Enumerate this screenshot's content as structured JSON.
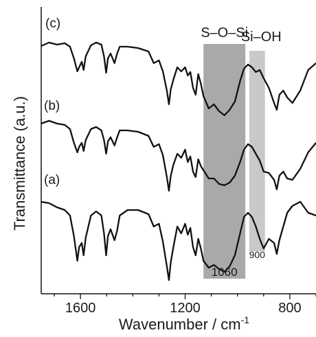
{
  "chart_data": {
    "type": "line",
    "xlabel": "Wavenumber / cm",
    "xlabel_sup": "-1",
    "ylabel": "Transmittance (a.u.)",
    "x_reversed": true,
    "xlim": [
      1750,
      700
    ],
    "xticks": [
      1600,
      1200,
      800
    ],
    "xtick_labels": [
      "1600",
      "1200",
      "800"
    ],
    "grid": false,
    "bands": [
      {
        "label": "S–O–Si",
        "from": 1130,
        "to": 970,
        "color": "#a9a9a9",
        "value_label": "1060"
      },
      {
        "label": "Si–OH",
        "from": 955,
        "to": 895,
        "color": "#c9c9c9",
        "value_label": "900"
      }
    ],
    "series": [
      {
        "name": "(c)",
        "x": [
          1750,
          1720,
          1690,
          1660,
          1640,
          1625,
          1612,
          1605,
          1595,
          1588,
          1580,
          1560,
          1540,
          1520,
          1510,
          1502,
          1495,
          1485,
          1470,
          1460,
          1450,
          1420,
          1380,
          1340,
          1320,
          1300,
          1285,
          1270,
          1262,
          1255,
          1245,
          1230,
          1215,
          1200,
          1190,
          1180,
          1170,
          1160,
          1150,
          1140,
          1130,
          1110,
          1090,
          1070,
          1050,
          1030,
          1010,
          990,
          975,
          960,
          945,
          930,
          915,
          900,
          880,
          860,
          850,
          840,
          825,
          810,
          790,
          760,
          730,
          700
        ],
        "y": [
          57,
          52,
          55,
          53,
          58,
          75,
          94,
          88,
          80,
          92,
          72,
          56,
          52,
          55,
          72,
          96,
          75,
          68,
          82,
          68,
          58,
          58,
          60,
          65,
          82,
          78,
          94,
          122,
          142,
          120,
          106,
          88,
          94,
          88,
          100,
          95,
          118,
          128,
          98,
          112,
          130,
          148,
          142,
          152,
          158,
          150,
          138,
          108,
          90,
          84,
          88,
          95,
          92,
          104,
          118,
          140,
          150,
          128,
          122,
          132,
          140,
          122,
          92,
          82
        ]
      },
      {
        "name": "(b)",
        "x": [
          1750,
          1720,
          1690,
          1660,
          1640,
          1625,
          1612,
          1605,
          1595,
          1588,
          1580,
          1560,
          1540,
          1520,
          1510,
          1502,
          1495,
          1485,
          1470,
          1460,
          1450,
          1420,
          1380,
          1340,
          1320,
          1300,
          1285,
          1270,
          1262,
          1255,
          1245,
          1230,
          1215,
          1200,
          1190,
          1180,
          1170,
          1160,
          1150,
          1140,
          1130,
          1110,
          1090,
          1070,
          1050,
          1030,
          1010,
          990,
          975,
          960,
          945,
          930,
          915,
          900,
          880,
          860,
          850,
          840,
          825,
          810,
          790,
          760,
          730,
          700
        ],
        "y": [
          170,
          166,
          170,
          172,
          178,
          198,
          212,
          204,
          198,
          210,
          194,
          178,
          175,
          180,
          194,
          214,
          196,
          190,
          202,
          190,
          180,
          180,
          182,
          188,
          204,
          200,
          216,
          248,
          268,
          246,
          230,
          214,
          220,
          208,
          226,
          218,
          240,
          248,
          222,
          232,
          238,
          250,
          250,
          258,
          260,
          256,
          246,
          226,
          208,
          200,
          204,
          214,
          224,
          240,
          242,
          252,
          266,
          246,
          240,
          250,
          252,
          236,
          212,
          198
        ]
      },
      {
        "name": "(a)",
        "x": [
          1750,
          1720,
          1690,
          1660,
          1640,
          1625,
          1612,
          1605,
          1595,
          1588,
          1580,
          1560,
          1540,
          1520,
          1510,
          1502,
          1495,
          1485,
          1470,
          1460,
          1450,
          1420,
          1380,
          1340,
          1320,
          1300,
          1285,
          1270,
          1262,
          1255,
          1245,
          1230,
          1215,
          1200,
          1190,
          1180,
          1170,
          1160,
          1150,
          1140,
          1130,
          1110,
          1090,
          1070,
          1050,
          1030,
          1010,
          990,
          975,
          960,
          945,
          930,
          915,
          900,
          880,
          860,
          850,
          840,
          825,
          810,
          790,
          760,
          730,
          700
        ],
        "y": [
          284,
          286,
          292,
          296,
          304,
          334,
          370,
          350,
          344,
          362,
          336,
          304,
          298,
          304,
          330,
          362,
          334,
          324,
          340,
          326,
          304,
          296,
          296,
          302,
          320,
          316,
          342,
          378,
          398,
          372,
          350,
          320,
          330,
          316,
          332,
          322,
          350,
          362,
          338,
          352,
          370,
          380,
          376,
          382,
          386,
          378,
          362,
          330,
          306,
          300,
          306,
          320,
          338,
          352,
          338,
          344,
          360,
          340,
          320,
          300,
          290,
          284,
          300,
          304
        ]
      }
    ]
  }
}
